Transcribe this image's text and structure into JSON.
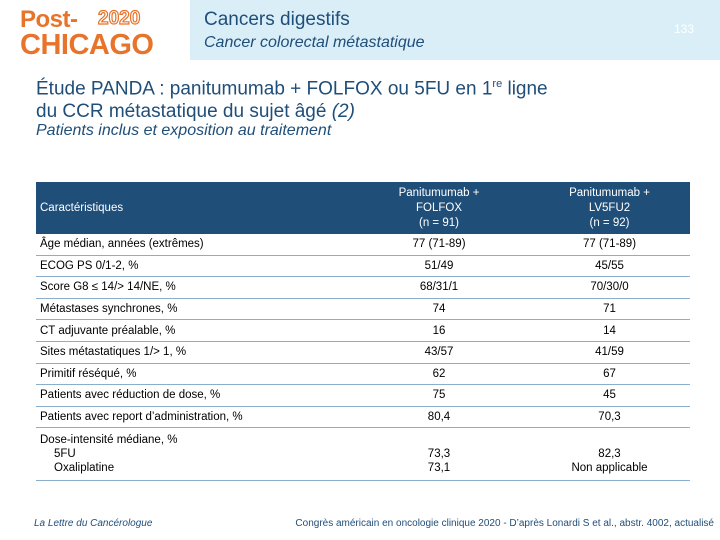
{
  "logo": {
    "line1": "Post-",
    "year": "2020",
    "line2": "CHICAGO"
  },
  "header": {
    "title": "Cancers digestifs",
    "subtitle": "Cancer colorectal métastatique",
    "page_number": "133"
  },
  "slide": {
    "title_part1": "Étude PANDA : panitumumab + FOLFOX ou 5FU en 1",
    "title_sup": "re",
    "title_part2": " ligne",
    "title_line2_text": "du CCR métastatique du sujet âgé ",
    "title_line2_ref": "(2)",
    "subtitle": "Patients inclus et exposition au traitement"
  },
  "table": {
    "headers": {
      "col1": "Caractéristiques",
      "col2_line1": "Panitumumab +",
      "col2_line2": "FOLFOX",
      "col2_line3": "(n = 91)",
      "col3_line1": "Panitumumab +",
      "col3_line2": "LV5FU2",
      "col3_line3": "(n = 92)"
    },
    "rows": [
      {
        "label": "Âge médian, années (extrêmes)",
        "a": "77 (71-89)",
        "b": "77 (71-89)"
      },
      {
        "label": "ECOG PS 0/1-2, %",
        "a": "51/49",
        "b": "45/55"
      },
      {
        "label": "Score G8 ≤ 14/> 14/NE, %",
        "a": "68/31/1",
        "b": "70/30/0"
      },
      {
        "label": "Métastases synchrones, %",
        "a": "74",
        "b": "71"
      },
      {
        "label": "CT adjuvante préalable, %",
        "a": "16",
        "b": "14"
      },
      {
        "label": "Sites métastatiques 1/> 1, %",
        "a": "43/57",
        "b": "41/59"
      },
      {
        "label": "Primitif réséqué, %",
        "a": "62",
        "b": "67"
      },
      {
        "label": "Patients avec réduction de dose, %",
        "a": "75",
        "b": "45"
      },
      {
        "label": "Patients avec report d’administration, %",
        "a": "80,4",
        "b": "70,3"
      }
    ],
    "last_row": {
      "label": "Dose-intensité médiane, %",
      "sub1": "5FU",
      "sub2": "Oxaliplatine",
      "a1": "73,3",
      "a2": "73,1",
      "b1": "82,3",
      "b2": "Non applicable"
    }
  },
  "footer": {
    "left": "La Lettre du Cancérologue",
    "right": "Congrès américain en oncologie clinique 2020 - D’après Lonardi S et al., abstr. 4002, actualisé"
  },
  "colors": {
    "accent_orange": "#e8732a",
    "navy": "#1f4e79",
    "header_band": "#daeef8"
  }
}
